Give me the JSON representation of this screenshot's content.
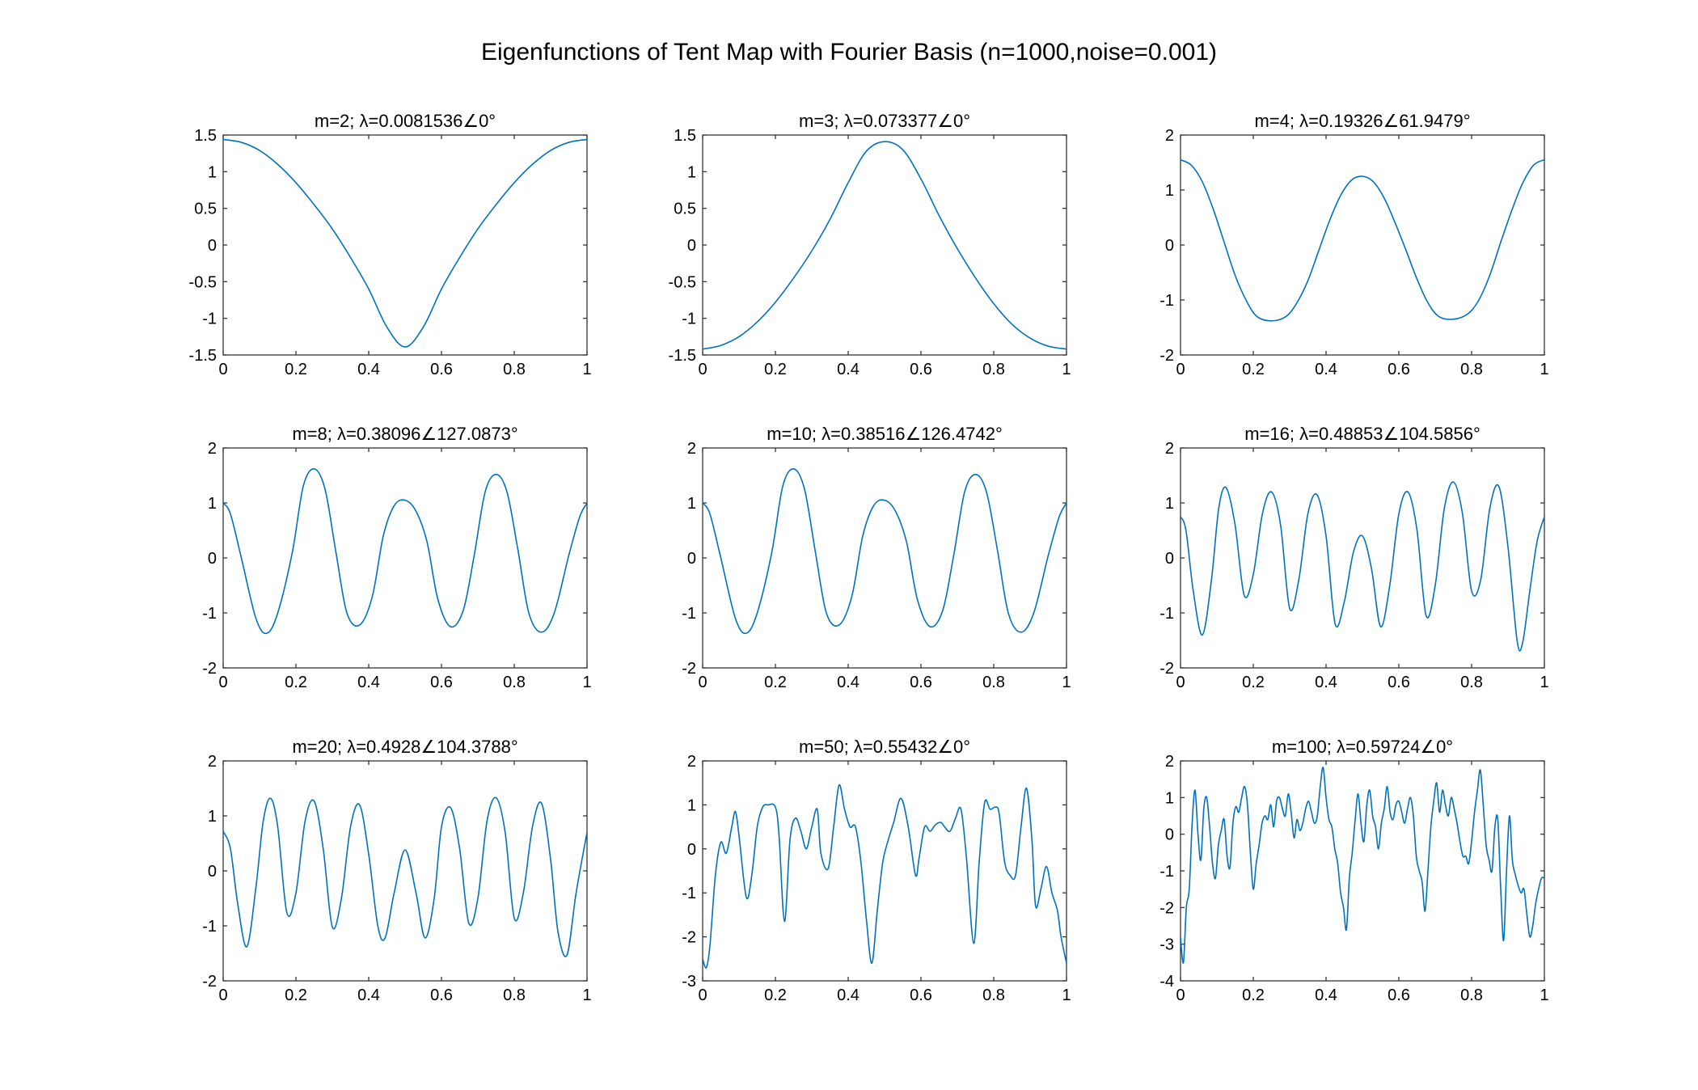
{
  "figure": {
    "title": "Eigenfunctions of Tent Map with Fourier Basis (n=1000,noise=0.001)"
  },
  "style": {
    "line_color": "#0072BD",
    "axis_color": "#262626",
    "text_color": "#000000",
    "background": "#ffffff"
  },
  "chart_data": [
    {
      "type": "line",
      "title": "m=2; λ=0.0081536∠0°",
      "xlim": [
        0,
        1
      ],
      "ylim": [
        -1.5,
        1.5
      ],
      "xticks": [
        "0",
        "0.2",
        "0.4",
        "0.6",
        "0.8",
        "1"
      ],
      "yticks": [
        "-1.5",
        "-1",
        "-0.5",
        "0",
        "0.5",
        "1",
        "1.5"
      ],
      "series": [
        {
          "x": [
            0,
            0.05,
            0.1,
            0.15,
            0.2,
            0.25,
            0.3,
            0.35,
            0.4,
            0.45,
            0.5,
            0.55,
            0.6,
            0.65,
            0.7,
            0.75,
            0.8,
            0.85,
            0.9,
            0.95,
            1
          ],
          "y": [
            1.44,
            1.4,
            1.29,
            1.1,
            0.85,
            0.55,
            0.22,
            -0.17,
            -0.6,
            -1.12,
            -1.39,
            -1.12,
            -0.6,
            -0.17,
            0.22,
            0.55,
            0.85,
            1.1,
            1.29,
            1.4,
            1.44
          ]
        }
      ]
    },
    {
      "type": "line",
      "title": "m=3; λ=0.073377∠0°",
      "xlim": [
        0,
        1
      ],
      "ylim": [
        -1.5,
        1.5
      ],
      "xticks": [
        "0",
        "0.2",
        "0.4",
        "0.6",
        "0.8",
        "1"
      ],
      "yticks": [
        "-1.5",
        "-1",
        "-0.5",
        "0",
        "0.5",
        "1",
        "1.5"
      ],
      "series": [
        {
          "x": [
            0,
            0.05,
            0.1,
            0.15,
            0.2,
            0.25,
            0.3,
            0.35,
            0.4,
            0.45,
            0.5,
            0.55,
            0.6,
            0.65,
            0.7,
            0.75,
            0.8,
            0.85,
            0.9,
            0.95,
            1
          ],
          "y": [
            -1.42,
            -1.37,
            -1.25,
            -1.05,
            -0.78,
            -0.45,
            -0.08,
            0.35,
            0.85,
            1.28,
            1.41,
            1.3,
            0.9,
            0.4,
            -0.05,
            -0.45,
            -0.8,
            -1.08,
            -1.27,
            -1.38,
            -1.42
          ]
        }
      ]
    },
    {
      "type": "line",
      "title": "m=4; λ=0.19326∠61.9479°",
      "xlim": [
        0,
        1
      ],
      "ylim": [
        -2,
        2
      ],
      "xticks": [
        "0",
        "0.2",
        "0.4",
        "0.6",
        "0.8",
        "1"
      ],
      "yticks": [
        "-2",
        "-1",
        "0",
        "1",
        "2"
      ],
      "series": [
        {
          "x": [
            0,
            0.03,
            0.06,
            0.09,
            0.12,
            0.15,
            0.18,
            0.21,
            0.25,
            0.29,
            0.32,
            0.35,
            0.38,
            0.41,
            0.44,
            0.47,
            0.5,
            0.53,
            0.56,
            0.59,
            0.62,
            0.65,
            0.68,
            0.71,
            0.75,
            0.79,
            0.82,
            0.85,
            0.88,
            0.91,
            0.94,
            0.97,
            1
          ],
          "y": [
            1.55,
            1.45,
            1.15,
            0.65,
            0.05,
            -0.55,
            -1.0,
            -1.3,
            -1.38,
            -1.3,
            -1.05,
            -0.65,
            -0.1,
            0.45,
            0.9,
            1.18,
            1.25,
            1.15,
            0.85,
            0.4,
            -0.1,
            -0.62,
            -1.05,
            -1.3,
            -1.35,
            -1.25,
            -1.0,
            -0.55,
            0.05,
            0.62,
            1.12,
            1.45,
            1.55
          ]
        }
      ]
    },
    {
      "type": "line",
      "title": "m=8; λ=0.38096∠127.0873°",
      "xlim": [
        0,
        1
      ],
      "ylim": [
        -2,
        2
      ],
      "xticks": [
        "0",
        "0.2",
        "0.4",
        "0.6",
        "0.8",
        "1"
      ],
      "yticks": [
        "-2",
        "-1",
        "0",
        "1",
        "2"
      ],
      "series": [
        {
          "x": [
            0,
            0.02,
            0.05,
            0.09,
            0.12,
            0.15,
            0.19,
            0.22,
            0.25,
            0.28,
            0.31,
            0.34,
            0.375,
            0.41,
            0.44,
            0.47,
            0.5,
            0.53,
            0.56,
            0.59,
            0.625,
            0.66,
            0.69,
            0.72,
            0.75,
            0.78,
            0.81,
            0.84,
            0.875,
            0.91,
            0.95,
            0.98,
            1
          ],
          "y": [
            1.0,
            0.8,
            0.0,
            -1.1,
            -1.37,
            -1.0,
            0.1,
            1.3,
            1.62,
            1.25,
            0.1,
            -1.0,
            -1.22,
            -0.7,
            0.4,
            0.95,
            1.05,
            0.85,
            0.3,
            -0.75,
            -1.25,
            -0.95,
            0.05,
            1.2,
            1.52,
            1.2,
            0.15,
            -1.0,
            -1.35,
            -1.0,
            0.05,
            0.75,
            1.0
          ]
        }
      ]
    },
    {
      "type": "line",
      "title": "m=10; λ=0.38516∠126.4742°",
      "xlim": [
        0,
        1
      ],
      "ylim": [
        -2,
        2
      ],
      "xticks": [
        "0",
        "0.2",
        "0.4",
        "0.6",
        "0.8",
        "1"
      ],
      "yticks": [
        "-2",
        "-1",
        "0",
        "1",
        "2"
      ],
      "series": [
        {
          "x": [
            0,
            0.02,
            0.05,
            0.09,
            0.12,
            0.15,
            0.19,
            0.22,
            0.25,
            0.28,
            0.31,
            0.34,
            0.375,
            0.41,
            0.44,
            0.47,
            0.5,
            0.53,
            0.56,
            0.59,
            0.625,
            0.66,
            0.69,
            0.72,
            0.75,
            0.78,
            0.81,
            0.84,
            0.875,
            0.91,
            0.95,
            0.98,
            1
          ],
          "y": [
            1.0,
            0.8,
            0.0,
            -1.1,
            -1.37,
            -1.0,
            0.1,
            1.3,
            1.62,
            1.25,
            0.1,
            -1.0,
            -1.22,
            -0.7,
            0.4,
            0.95,
            1.05,
            0.85,
            0.3,
            -0.75,
            -1.25,
            -0.95,
            0.05,
            1.2,
            1.52,
            1.2,
            0.15,
            -1.0,
            -1.35,
            -1.0,
            0.05,
            0.75,
            1.0
          ]
        }
      ]
    },
    {
      "type": "line",
      "title": "m=16; λ=0.48853∠104.5856°",
      "xlim": [
        0,
        1
      ],
      "ylim": [
        -2,
        2
      ],
      "xticks": [
        "0",
        "0.2",
        "0.4",
        "0.6",
        "0.8",
        "1"
      ],
      "yticks": [
        "-2",
        "-1",
        "0",
        "1",
        "2"
      ],
      "series": [
        {
          "x": [
            0,
            0.015,
            0.035,
            0.06,
            0.085,
            0.105,
            0.125,
            0.15,
            0.175,
            0.2,
            0.225,
            0.25,
            0.275,
            0.3,
            0.325,
            0.35,
            0.375,
            0.4,
            0.425,
            0.45,
            0.475,
            0.5,
            0.525,
            0.55,
            0.575,
            0.6,
            0.625,
            0.65,
            0.675,
            0.7,
            0.725,
            0.75,
            0.775,
            0.8,
            0.825,
            0.85,
            0.875,
            0.9,
            0.925,
            0.94,
            0.96,
            0.98,
            1
          ],
          "y": [
            0.75,
            0.5,
            -0.6,
            -1.4,
            -0.4,
            0.9,
            1.28,
            0.6,
            -0.68,
            -0.3,
            0.8,
            1.2,
            0.6,
            -0.92,
            -0.4,
            0.8,
            1.15,
            0.4,
            -1.2,
            -0.8,
            0.1,
            0.4,
            -0.2,
            -1.25,
            -0.5,
            0.8,
            1.2,
            0.5,
            -1.05,
            -0.5,
            0.9,
            1.38,
            0.8,
            -0.6,
            -0.4,
            0.9,
            1.3,
            0.2,
            -1.5,
            -1.55,
            -0.6,
            0.3,
            0.75
          ]
        }
      ]
    },
    {
      "type": "line",
      "title": "m=20; λ=0.4928∠104.3788°",
      "xlim": [
        0,
        1
      ],
      "ylim": [
        -2,
        2
      ],
      "xticks": [
        "0",
        "0.2",
        "0.4",
        "0.6",
        "0.8",
        "1"
      ],
      "yticks": [
        "-2",
        "-1",
        "0",
        "1",
        "2"
      ],
      "series": [
        {
          "x": [
            0,
            0.02,
            0.04,
            0.065,
            0.09,
            0.11,
            0.13,
            0.15,
            0.175,
            0.2,
            0.225,
            0.25,
            0.275,
            0.3,
            0.325,
            0.35,
            0.375,
            0.4,
            0.425,
            0.445,
            0.47,
            0.5,
            0.53,
            0.555,
            0.58,
            0.6,
            0.625,
            0.65,
            0.675,
            0.7,
            0.725,
            0.75,
            0.775,
            0.8,
            0.825,
            0.85,
            0.875,
            0.9,
            0.92,
            0.945,
            0.97,
            1
          ],
          "y": [
            0.72,
            0.4,
            -0.6,
            -1.38,
            -0.3,
            0.9,
            1.32,
            0.8,
            -0.76,
            -0.4,
            0.9,
            1.27,
            0.4,
            -1.02,
            -0.5,
            0.8,
            1.2,
            0.3,
            -1.0,
            -1.22,
            -0.4,
            0.38,
            -0.4,
            -1.22,
            -0.5,
            0.8,
            1.15,
            0.4,
            -0.95,
            -0.5,
            0.9,
            1.33,
            0.7,
            -0.86,
            -0.4,
            0.8,
            1.23,
            0.2,
            -1.1,
            -1.53,
            -0.4,
            0.7
          ]
        }
      ]
    },
    {
      "type": "line",
      "title": "m=50; λ=0.55432∠0°",
      "xlim": [
        0,
        1
      ],
      "ylim": [
        -3,
        2
      ],
      "xticks": [
        "0",
        "0.2",
        "0.4",
        "0.6",
        "0.8",
        "1"
      ],
      "yticks": [
        "-3",
        "-2",
        "-1",
        "0",
        "1",
        "2"
      ],
      "series": [
        {
          "x": [
            0,
            0.01,
            0.02,
            0.035,
            0.05,
            0.065,
            0.08,
            0.09,
            0.1,
            0.12,
            0.135,
            0.15,
            0.165,
            0.18,
            0.2,
            0.21,
            0.225,
            0.24,
            0.255,
            0.27,
            0.285,
            0.3,
            0.315,
            0.325,
            0.345,
            0.36,
            0.375,
            0.39,
            0.405,
            0.42,
            0.435,
            0.45,
            0.465,
            0.48,
            0.495,
            0.51,
            0.525,
            0.545,
            0.565,
            0.585,
            0.595,
            0.61,
            0.625,
            0.64,
            0.655,
            0.665,
            0.68,
            0.695,
            0.71,
            0.725,
            0.745,
            0.76,
            0.775,
            0.79,
            0.805,
            0.815,
            0.83,
            0.845,
            0.86,
            0.875,
            0.89,
            0.905,
            0.915,
            0.93,
            0.945,
            0.96,
            0.975,
            0.985,
            1
          ],
          "y": [
            -2.5,
            -2.7,
            -2.2,
            -0.6,
            0.15,
            -0.1,
            0.5,
            0.85,
            0.3,
            -1.1,
            -0.6,
            0.5,
            0.95,
            1.0,
            0.95,
            0.3,
            -1.65,
            0.2,
            0.7,
            0.4,
            0.0,
            0.5,
            0.9,
            -0.1,
            -0.45,
            0.5,
            1.45,
            0.9,
            0.5,
            0.5,
            -0.3,
            -1.6,
            -2.6,
            -1.4,
            -0.3,
            0.2,
            0.6,
            1.15,
            0.5,
            -0.6,
            -0.2,
            0.5,
            0.4,
            0.55,
            0.6,
            0.5,
            0.4,
            0.7,
            0.9,
            -0.2,
            -2.15,
            -0.3,
            1.05,
            0.9,
            0.95,
            0.8,
            -0.3,
            -0.6,
            -0.6,
            0.5,
            1.38,
            0.2,
            -1.3,
            -0.9,
            -0.4,
            -1.0,
            -1.4,
            -2.0,
            -2.6
          ]
        }
      ]
    },
    {
      "type": "line",
      "title": "m=100; λ=0.59724∠0°",
      "xlim": [
        0,
        1
      ],
      "ylim": [
        -4,
        2
      ],
      "xticks": [
        "0",
        "0.2",
        "0.4",
        "0.6",
        "0.8",
        "1"
      ],
      "yticks": [
        "-4",
        "-3",
        "-2",
        "-1",
        "0",
        "1",
        "2"
      ],
      "series": [
        {
          "x": [
            0,
            0.008,
            0.016,
            0.024,
            0.032,
            0.04,
            0.048,
            0.056,
            0.064,
            0.072,
            0.08,
            0.088,
            0.096,
            0.104,
            0.112,
            0.12,
            0.128,
            0.136,
            0.144,
            0.152,
            0.16,
            0.168,
            0.176,
            0.184,
            0.192,
            0.2,
            0.208,
            0.216,
            0.224,
            0.232,
            0.24,
            0.248,
            0.256,
            0.264,
            0.272,
            0.28,
            0.288,
            0.296,
            0.304,
            0.312,
            0.32,
            0.328,
            0.336,
            0.344,
            0.352,
            0.36,
            0.368,
            0.376,
            0.384,
            0.392,
            0.4,
            0.408,
            0.416,
            0.424,
            0.432,
            0.44,
            0.448,
            0.456,
            0.464,
            0.472,
            0.48,
            0.488,
            0.496,
            0.504,
            0.512,
            0.52,
            0.528,
            0.536,
            0.544,
            0.552,
            0.56,
            0.568,
            0.576,
            0.584,
            0.592,
            0.6,
            0.608,
            0.616,
            0.624,
            0.632,
            0.64,
            0.648,
            0.656,
            0.664,
            0.672,
            0.68,
            0.688,
            0.696,
            0.704,
            0.712,
            0.72,
            0.728,
            0.736,
            0.744,
            0.752,
            0.76,
            0.768,
            0.776,
            0.784,
            0.792,
            0.8,
            0.808,
            0.816,
            0.824,
            0.832,
            0.84,
            0.848,
            0.856,
            0.864,
            0.872,
            0.88,
            0.888,
            0.896,
            0.904,
            0.912,
            0.92,
            0.928,
            0.936,
            0.944,
            0.952,
            0.96,
            0.968,
            0.976,
            0.984,
            0.992,
            1
          ],
          "y": [
            -2.8,
            -3.5,
            -2.0,
            -1.5,
            0.3,
            1.2,
            0.0,
            -0.7,
            0.7,
            1.0,
            0.2,
            -0.8,
            -1.2,
            -0.3,
            0.1,
            0.4,
            -0.6,
            -0.9,
            0.3,
            0.75,
            0.6,
            1.0,
            1.3,
            0.8,
            -0.5,
            -1.5,
            -0.8,
            -0.3,
            0.3,
            0.5,
            0.4,
            0.8,
            0.2,
            0.9,
            1.0,
            0.7,
            0.5,
            1.1,
            0.6,
            -0.1,
            0.4,
            0.1,
            0.3,
            0.7,
            0.9,
            0.6,
            0.3,
            0.5,
            1.3,
            1.82,
            1.0,
            0.4,
            0.2,
            -0.4,
            -0.8,
            -1.6,
            -2.0,
            -2.6,
            -1.2,
            -0.5,
            0.4,
            1.1,
            0.3,
            -0.2,
            0.8,
            1.2,
            0.5,
            0.2,
            -0.4,
            0.3,
            0.7,
            1.3,
            0.6,
            0.4,
            0.8,
            0.9,
            0.6,
            0.3,
            0.7,
            1.0,
            0.5,
            -0.6,
            -1.0,
            -1.3,
            -2.1,
            -1.0,
            0.2,
            0.9,
            1.4,
            0.6,
            1.2,
            0.8,
            0.5,
            1.0,
            0.7,
            0.3,
            -0.2,
            -0.6,
            -0.6,
            -0.8,
            -0.2,
            0.6,
            1.2,
            1.75,
            0.8,
            -0.3,
            -0.7,
            -1.0,
            0.2,
            0.4,
            -1.5,
            -2.9,
            -1.0,
            0.5,
            -0.7,
            -1.1,
            -1.4,
            -1.6,
            -1.5,
            -2.2,
            -2.8,
            -2.5,
            -1.9,
            -1.5,
            -1.2,
            -1.2
          ]
        }
      ]
    }
  ]
}
